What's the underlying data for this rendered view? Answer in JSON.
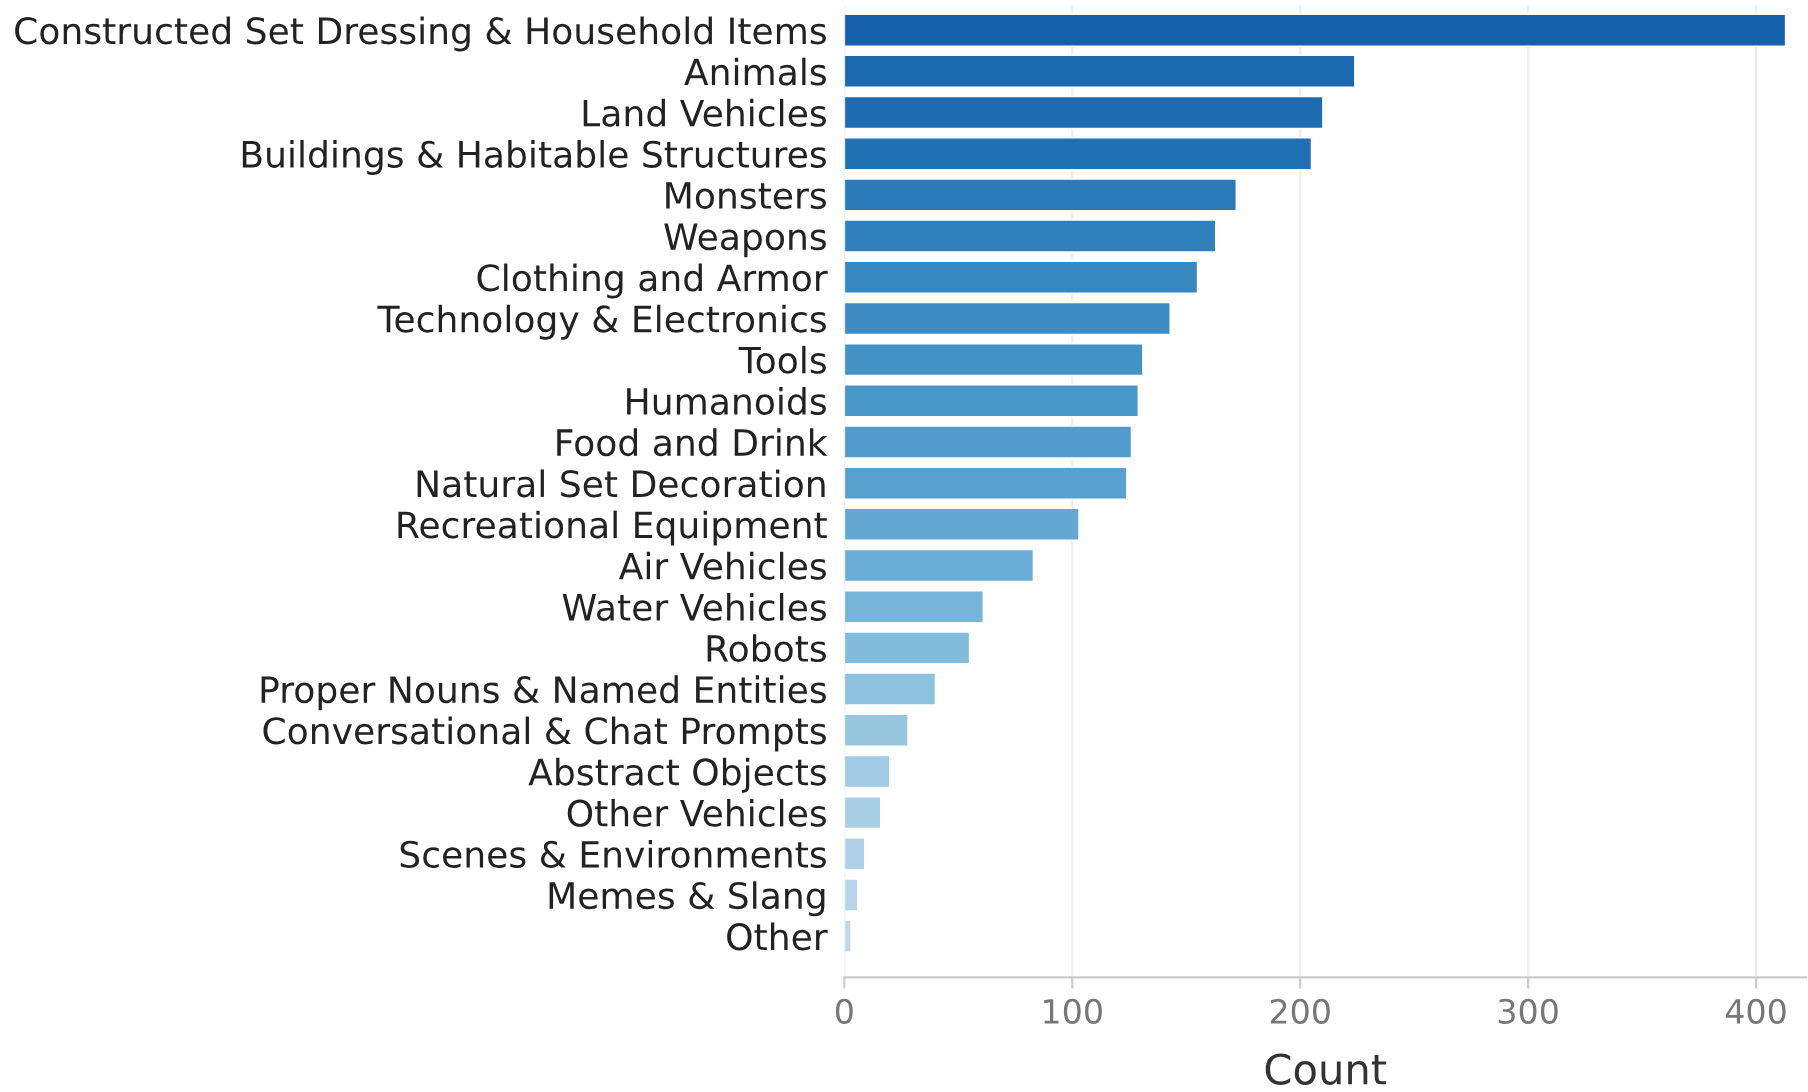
{
  "chart_data": {
    "type": "bar",
    "orientation": "horizontal",
    "xlabel": "Count",
    "categories": [
      "Constructed Set Dressing & Household Items",
      "Animals",
      "Land Vehicles",
      "Buildings & Habitable Structures",
      "Monsters",
      "Weapons",
      "Clothing and Armor",
      "Technology & Electronics",
      "Tools",
      "Humanoids",
      "Food and Drink",
      "Natural Set Decoration",
      "Recreational Equipment",
      "Air Vehicles",
      "Water Vehicles",
      "Robots",
      "Proper Nouns & Named Entities",
      "Conversational & Chat Prompts",
      "Abstract Objects",
      "Other Vehicles",
      "Scenes & Environments",
      "Memes & Slang",
      "Other"
    ],
    "values": [
      413,
      224,
      210,
      205,
      172,
      163,
      155,
      143,
      131,
      129,
      126,
      124,
      103,
      83,
      61,
      55,
      40,
      28,
      20,
      16,
      9,
      6,
      3
    ],
    "colors": [
      "#1560a8",
      "#1a68ae",
      "#1d6cb1",
      "#2070b4",
      "#2a7ab9",
      "#3080bd",
      "#3787c0",
      "#3d8dc4",
      "#4292c6",
      "#4997c9",
      "#519ccc",
      "#58a1cf",
      "#62a8d3",
      "#6aaed6",
      "#77b5d9",
      "#82bbdb",
      "#8dc1dd",
      "#97c6df",
      "#a0cbe2",
      "#a9cfe5",
      "#b0d2e7",
      "#b7d4ea",
      "#bfd8ed"
    ],
    "xlim": [
      0,
      422
    ],
    "xticks": [
      0,
      100,
      200,
      300,
      400
    ],
    "grid": "x"
  }
}
